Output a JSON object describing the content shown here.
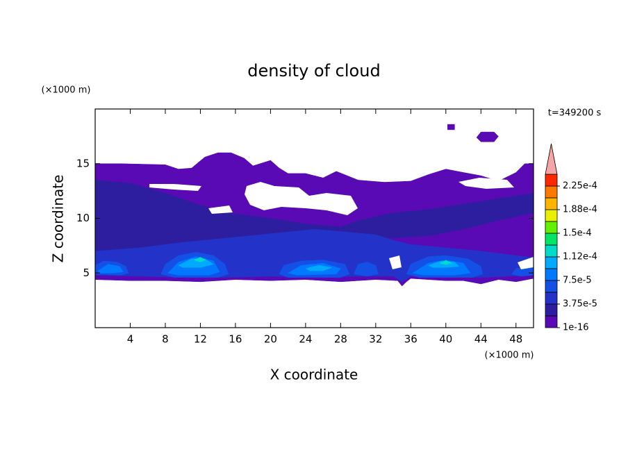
{
  "chart_data": {
    "type": "contour",
    "title": "density of cloud",
    "x_label": "X coordinate",
    "y_label": "Z coordinate",
    "x_unit": "(×1000 m)",
    "y_unit": "(×1000 m)",
    "annotation": "t=349200 s",
    "xlim": [
      0,
      50
    ],
    "ylim": [
      0,
      20
    ],
    "xticks": [
      4,
      8,
      12,
      16,
      20,
      24,
      28,
      32,
      36,
      40,
      44,
      48
    ],
    "yticks": [
      5,
      10,
      15
    ],
    "colorbar": {
      "levels": [
        1e-16,
        1.875e-05,
        3.75e-05,
        5.625e-05,
        7.5e-05,
        9.375e-05,
        0.0001125,
        0.00013125,
        0.00015,
        0.00016875,
        0.0001875,
        0.00020625,
        0.000225,
        0.00024375
      ],
      "colors": [
        "#5a0ab4",
        "#2d1ea0",
        "#2332c8",
        "#1450e6",
        "#0078ff",
        "#00aaff",
        "#00dcc8",
        "#00e664",
        "#64f000",
        "#e6f000",
        "#ffb400",
        "#ff7800",
        "#ff2800"
      ],
      "extend_color": "#f5a5a5",
      "ticks": [
        {
          "value": 1e-16,
          "label": "1e-16"
        },
        {
          "value": 3.75e-05,
          "label": "3.75e-5"
        },
        {
          "value": 7.5e-05,
          "label": "7.5e-5"
        },
        {
          "value": 0.0001125,
          "label": "1.12e-4"
        },
        {
          "value": 0.00015,
          "label": "1.5e-4"
        },
        {
          "value": 0.0001875,
          "label": "1.88e-4"
        },
        {
          "value": 0.000225,
          "label": "2.25e-4"
        }
      ]
    },
    "regions": [
      {
        "value": 1e-16,
        "x": [
          0,
          3,
          8,
          9.5,
          11,
          12.5,
          14,
          15.5,
          17,
          18,
          20,
          21,
          22,
          24,
          26,
          27.5,
          30,
          33,
          36,
          38,
          40,
          42,
          44,
          46,
          48,
          49,
          50,
          50,
          48,
          46,
          44,
          42,
          40,
          38,
          36,
          35.5,
          35,
          34.5,
          32,
          28,
          24,
          20,
          16,
          12,
          8,
          4,
          0
        ],
        "z": [
          15,
          15,
          14.9,
          14.5,
          14.6,
          15.6,
          16,
          16,
          15.5,
          14.8,
          15.3,
          14.6,
          14.1,
          14.1,
          13.7,
          14.3,
          13.5,
          13.3,
          13.4,
          14,
          14.5,
          14.2,
          13.9,
          13.4,
          14.2,
          15,
          15,
          4.5,
          4.2,
          4.4,
          4,
          4.3,
          4.3,
          4.4,
          4.5,
          4.2,
          3.8,
          4.3,
          4.4,
          4.2,
          4.4,
          4.3,
          4.4,
          4.2,
          4.3,
          4.3,
          4.4
        ]
      },
      {
        "value": 1e-16,
        "x": [
          40.2,
          41,
          41,
          40.2
        ],
        "z": [
          18.6,
          18.6,
          18.1,
          18.1
        ]
      },
      {
        "value": 1e-16,
        "x": [
          44,
          45.5,
          46,
          45.5,
          44,
          43.5
        ],
        "z": [
          17.9,
          17.9,
          17.5,
          17,
          17,
          17.4
        ]
      },
      {
        "value": 1.875e-05,
        "x": [
          0,
          4,
          8,
          12,
          16,
          20,
          24,
          28,
          30,
          34,
          38,
          42,
          46,
          50,
          50,
          46,
          42,
          38,
          34,
          30,
          26,
          22,
          18,
          14,
          10,
          6,
          2,
          0
        ],
        "z": [
          13.5,
          13.2,
          12.3,
          11.2,
          10.4,
          10,
          9.5,
          9.2,
          9.8,
          10.5,
          10.8,
          11.3,
          11.8,
          12.3,
          10.5,
          9.8,
          9,
          8.4,
          8.2,
          8.4,
          8.8,
          8.6,
          8.3,
          7.8,
          7.3,
          7,
          6.8,
          6.8
        ]
      },
      {
        "value": 3.75e-05,
        "x": [
          0,
          5,
          10,
          15,
          20,
          25,
          28,
          32,
          34,
          36,
          40,
          44,
          48,
          50,
          50,
          47,
          44,
          40,
          36,
          35,
          34,
          30,
          25,
          20,
          15,
          10,
          5,
          0
        ],
        "z": [
          7,
          7.3,
          7.8,
          8.2,
          8.6,
          9,
          8.8,
          8.5,
          8,
          7.6,
          7.3,
          7,
          6.6,
          6.4,
          4.8,
          4.7,
          4.6,
          4.6,
          4.7,
          4.2,
          4.7,
          4.7,
          4.6,
          4.7,
          4.6,
          4.6,
          4.7,
          4.8
        ]
      },
      {
        "value": 5.625e-05,
        "x": [
          0,
          0,
          1,
          2.5,
          3.5,
          3.8,
          3
        ],
        "z": [
          4.9,
          5.7,
          6.1,
          6,
          5.6,
          5,
          4.8
        ]
      },
      {
        "value": 5.625e-05,
        "x": [
          7.5,
          8,
          9.5,
          11.5,
          13.5,
          14.8,
          15.2,
          14,
          9
        ],
        "z": [
          4.9,
          5.8,
          6.6,
          6.9,
          6.6,
          5.8,
          4.9,
          4.6,
          4.6
        ]
      },
      {
        "value": 5.625e-05,
        "x": [
          21,
          21.5,
          23.5,
          26,
          28.5,
          29,
          28,
          22
        ],
        "z": [
          4.9,
          5.7,
          6.1,
          6.2,
          5.8,
          4.9,
          4.6,
          4.6
        ]
      },
      {
        "value": 5.625e-05,
        "x": [
          29.5,
          30,
          31,
          32,
          32.3,
          31
        ],
        "z": [
          4.9,
          5.8,
          6,
          5.7,
          4.9,
          4.7
        ]
      },
      {
        "value": 5.625e-05,
        "x": [
          35.5,
          36,
          38,
          40,
          42.5,
          44,
          44.2,
          43,
          37
        ],
        "z": [
          4.9,
          5.8,
          6.5,
          6.6,
          6.3,
          5.6,
          4.9,
          4.6,
          4.6
        ]
      },
      {
        "value": 5.625e-05,
        "x": [
          47.5,
          48,
          49.5,
          50,
          50,
          48.5
        ],
        "z": [
          4.9,
          5.4,
          5.6,
          5.5,
          4.8,
          4.7
        ]
      },
      {
        "value": 7.5e-05,
        "x": [
          0.3,
          1.5,
          2.8,
          3.2,
          2,
          0.5
        ],
        "z": [
          5.2,
          5.8,
          5.6,
          5.1,
          5,
          5
        ]
      },
      {
        "value": 7.5e-05,
        "x": [
          8.3,
          9.5,
          11.5,
          13.5,
          14.2,
          13,
          9.5
        ],
        "z": [
          5,
          6,
          6.5,
          6.1,
          5.1,
          4.8,
          4.8
        ]
      },
      {
        "value": 7.5e-05,
        "x": [
          22,
          23.5,
          26,
          28,
          27.5,
          23
        ],
        "z": [
          5,
          5.7,
          5.9,
          5.4,
          4.9,
          4.8
        ]
      },
      {
        "value": 7.5e-05,
        "x": [
          36.2,
          38,
          40,
          42,
          42.8,
          41,
          37.5
        ],
        "z": [
          5,
          5.9,
          6.2,
          5.9,
          5,
          4.8,
          4.8
        ]
      },
      {
        "value": 9.375e-05,
        "x": [
          9.5,
          11,
          12.5,
          13.5,
          12,
          10
        ],
        "z": [
          5.7,
          6.3,
          6.3,
          5.8,
          5.5,
          5.5
        ]
      },
      {
        "value": 9.375e-05,
        "x": [
          38,
          39.5,
          41,
          41.5,
          40,
          38.5
        ],
        "z": [
          5.7,
          6.1,
          6,
          5.6,
          5.5,
          5.5
        ]
      },
      {
        "value": 9.375e-05,
        "x": [
          24,
          25.5,
          27,
          26,
          24.5
        ],
        "z": [
          5.4,
          5.7,
          5.5,
          5.2,
          5.2
        ]
      },
      {
        "value": 0.0001125,
        "x": [
          11.3,
          12,
          12.6,
          12
        ],
        "z": [
          6.2,
          6.45,
          6.2,
          6
        ]
      },
      {
        "value": 0.0001125,
        "x": [
          39.3,
          40,
          40.7,
          40
        ],
        "z": [
          5.9,
          6.15,
          5.9,
          5.75
        ]
      }
    ]
  }
}
